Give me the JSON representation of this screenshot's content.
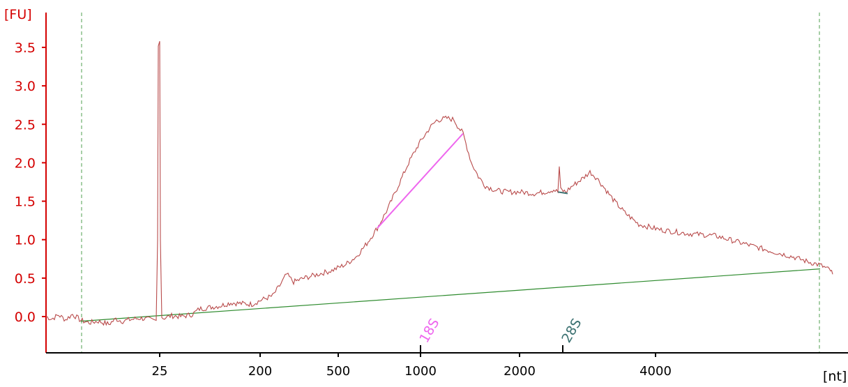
{
  "chart_data": {
    "type": "line",
    "title": "",
    "ylabel": "[FU]",
    "xlabel": "[nt]",
    "ylim": [
      -0.45,
      3.9
    ],
    "yticks": [
      0.0,
      0.5,
      1.0,
      1.5,
      2.0,
      2.5,
      3.0,
      3.5
    ],
    "ytick_labels": [
      "0.0",
      "0.5",
      "1.0",
      "1.5",
      "2.0",
      "2.5",
      "3.0",
      "3.5"
    ],
    "xtick_labels": [
      "25",
      "200",
      "500",
      "1000",
      "2000",
      "4000"
    ],
    "grid": false,
    "colors": {
      "trace": "#b84a4a",
      "y_axis": "#d40000",
      "baseline": "#2e8b2e",
      "region_bounds": "#4f9f4f",
      "peak_18s": "#ee66ee",
      "peak_28s": "#3a7070"
    },
    "markers": [
      {
        "label": "18S",
        "color": "#ee66ee"
      },
      {
        "label": "28S",
        "color": "#3a7070"
      }
    ],
    "trace": {
      "name": "",
      "points": [
        [
          0,
          0.0
        ],
        [
          8,
          -0.03
        ],
        [
          18,
          0.02
        ],
        [
          28,
          -0.04
        ],
        [
          38,
          0.03
        ],
        [
          50,
          -0.05
        ],
        [
          62,
          -0.08
        ],
        [
          75,
          -0.06
        ],
        [
          90,
          -0.1
        ],
        [
          100,
          -0.03
        ],
        [
          110,
          -0.06
        ],
        [
          120,
          -0.04
        ],
        [
          135,
          -0.02
        ],
        [
          150,
          -0.04
        ],
        [
          158,
          -0.05
        ],
        [
          160,
          1.0
        ],
        [
          161,
          3.55
        ],
        [
          163,
          3.58
        ],
        [
          164,
          1.0
        ],
        [
          166,
          0.0
        ],
        [
          168,
          -0.02
        ],
        [
          180,
          0.01
        ],
        [
          195,
          0.0
        ],
        [
          210,
          0.03
        ],
        [
          220,
          0.1
        ],
        [
          235,
          0.12
        ],
        [
          250,
          0.14
        ],
        [
          265,
          0.18
        ],
        [
          280,
          0.17
        ],
        [
          295,
          0.16
        ],
        [
          310,
          0.22
        ],
        [
          325,
          0.27
        ],
        [
          335,
          0.4
        ],
        [
          345,
          0.55
        ],
        [
          355,
          0.45
        ],
        [
          370,
          0.5
        ],
        [
          390,
          0.55
        ],
        [
          410,
          0.6
        ],
        [
          430,
          0.68
        ],
        [
          445,
          0.78
        ],
        [
          460,
          0.95
        ],
        [
          475,
          1.15
        ],
        [
          490,
          1.4
        ],
        [
          505,
          1.7
        ],
        [
          520,
          2.0
        ],
        [
          535,
          2.25
        ],
        [
          550,
          2.45
        ],
        [
          560,
          2.55
        ],
        [
          575,
          2.58
        ],
        [
          585,
          2.56
        ],
        [
          590,
          2.48
        ],
        [
          598,
          2.38
        ],
        [
          610,
          2.0
        ],
        [
          620,
          1.82
        ],
        [
          630,
          1.7
        ],
        [
          645,
          1.64
        ],
        [
          660,
          1.62
        ],
        [
          680,
          1.62
        ],
        [
          700,
          1.6
        ],
        [
          715,
          1.62
        ],
        [
          728,
          1.65
        ],
        [
          734,
          1.62
        ],
        [
          736,
          1.95
        ],
        [
          738,
          1.65
        ],
        [
          745,
          1.62
        ],
        [
          755,
          1.7
        ],
        [
          770,
          1.8
        ],
        [
          780,
          1.88
        ],
        [
          790,
          1.8
        ],
        [
          800,
          1.68
        ],
        [
          815,
          1.5
        ],
        [
          830,
          1.35
        ],
        [
          850,
          1.2
        ],
        [
          880,
          1.13
        ],
        [
          920,
          1.08
        ],
        [
          960,
          1.05
        ],
        [
          1000,
          0.95
        ],
        [
          1040,
          0.85
        ],
        [
          1070,
          0.78
        ],
        [
          1090,
          0.72
        ],
        [
          1110,
          0.67
        ],
        [
          1125,
          0.6
        ],
        [
          1128,
          0.55
        ]
      ]
    },
    "baseline": {
      "from": [
        50,
        -0.06
      ],
      "to": [
        1110,
        0.62
      ]
    },
    "region_bounds": [
      50,
      1110
    ],
    "peak_18s_fit": {
      "from": [
        475,
        1.15
      ],
      "to": [
        598,
        2.38
      ]
    },
    "peak_28s_fit": {
      "from": [
        734,
        1.62
      ],
      "to": [
        748,
        1.6
      ]
    }
  }
}
